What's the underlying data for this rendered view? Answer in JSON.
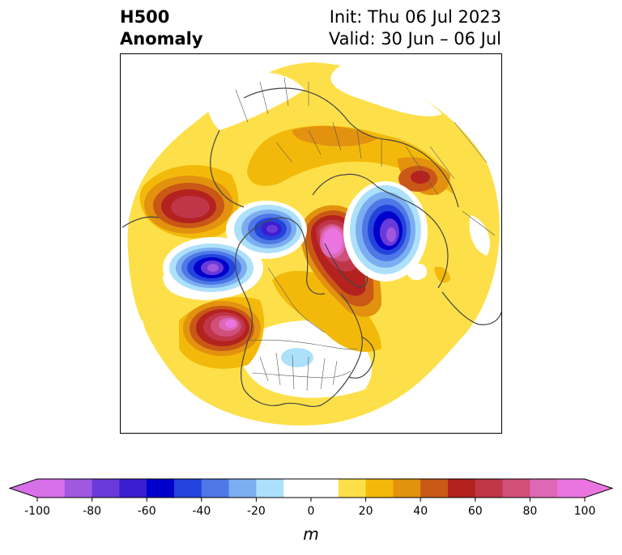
{
  "title": {
    "left_line1": "H500",
    "left_line2": "Anomaly",
    "right_line1": "Init: Thu 06 Jul 2023",
    "right_line2": "Valid: 30 Jun – 06 Jul"
  },
  "colorbar": {
    "label": "m",
    "min": -100,
    "max": 100,
    "step": 10,
    "extend": "both",
    "colors": [
      "#d66fe8",
      "#a058e0",
      "#6a3ad8",
      "#3a1ed0",
      "#0000cc",
      "#2244dd",
      "#4f78e6",
      "#7aaef0",
      "#ade0fb",
      "#ffffff",
      "#ffffff",
      "#fde049",
      "#f3b90a",
      "#e2920f",
      "#c95817",
      "#b3221f",
      "#c13548",
      "#d0507a",
      "#de68b4",
      "#ea75e0"
    ],
    "under_color": "#d66fe8",
    "over_color": "#ea75e0",
    "ticks": [
      -100,
      -80,
      -60,
      -40,
      -20,
      0,
      20,
      40,
      60,
      80,
      100
    ],
    "tick_labels": [
      "-100",
      "-80",
      "-60",
      "-40",
      "-20",
      "0",
      "20",
      "40",
      "60",
      "80",
      "100"
    ]
  },
  "map": {
    "projection": "north-polar-stereographic",
    "variable": "500 hPa geopotential height anomaly",
    "anomaly_centers": [
      {
        "sign": "negative",
        "region": "central North Pacific",
        "value": -80
      },
      {
        "sign": "negative",
        "region": "Bering Strait / Alaska",
        "value": -70
      },
      {
        "sign": "negative",
        "region": "western Siberia / Kara Sea",
        "value": -90
      },
      {
        "sign": "negative",
        "region": "central United States",
        "value": -20
      },
      {
        "sign": "positive",
        "region": "Greenland / Arctic",
        "value": 100
      },
      {
        "sign": "positive",
        "region": "northeast Pacific off western Canada",
        "value": 100
      },
      {
        "sign": "positive",
        "region": "western North Pacific",
        "value": 60
      },
      {
        "sign": "positive",
        "region": "central Siberia",
        "value": 50
      }
    ]
  }
}
